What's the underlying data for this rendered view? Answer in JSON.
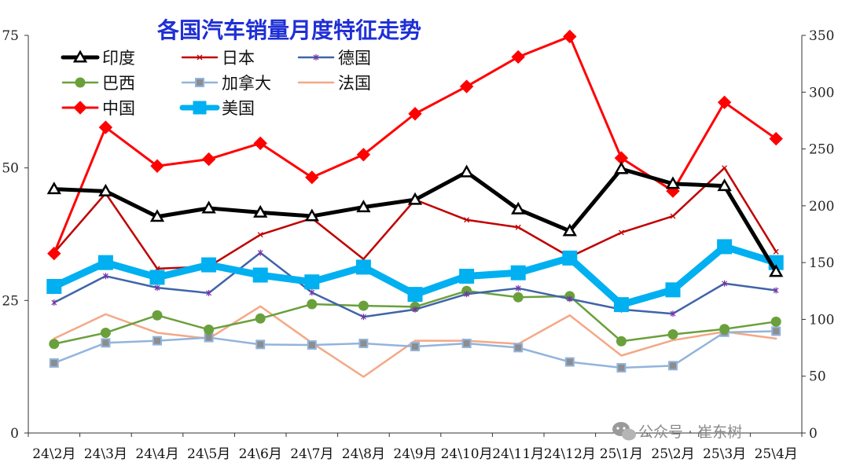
{
  "chart_data": {
    "type": "line",
    "title": "各国汽车销量月度特征走势",
    "categories": [
      "24\\2月",
      "24\\3月",
      "24\\4月",
      "24\\5月",
      "24\\6月",
      "24\\7月",
      "24\\8月",
      "24\\9月",
      "24\\10月",
      "24\\11月",
      "24\\12月",
      "25\\1月",
      "25\\2月",
      "25\\3月",
      "25\\4月"
    ],
    "y_left": {
      "range": [
        0,
        75
      ],
      "ticks": [
        "0",
        "25",
        "50",
        "75"
      ],
      "tick_values": [
        0,
        25,
        50,
        75
      ]
    },
    "y_right": {
      "range": [
        0,
        350
      ],
      "ticks": [
        "0",
        "50",
        "100",
        "150",
        "200",
        "250",
        "300",
        "350"
      ],
      "tick_values": [
        0,
        50,
        100,
        150,
        200,
        250,
        300,
        350
      ]
    },
    "grid": false,
    "legend_position": "top-left",
    "series": [
      {
        "name": "印度",
        "axis": "left",
        "color": "#000000",
        "marker": "triangle",
        "width": 5,
        "values": [
          46.0,
          45.6,
          40.8,
          42.4,
          41.6,
          40.9,
          42.6,
          44.0,
          49.2,
          42.2,
          38.1,
          49.8,
          47.0,
          46.6,
          30.4
        ]
      },
      {
        "name": "日本",
        "axis": "left",
        "color": "#c00000",
        "marker": "x",
        "width": 2.5,
        "values": [
          34.0,
          45.2,
          31.0,
          31.4,
          37.4,
          40.5,
          32.8,
          44.0,
          40.2,
          38.8,
          33.2,
          37.8,
          40.9,
          50.0,
          34.2
        ]
      },
      {
        "name": "德国",
        "axis": "left",
        "color": "#4064a8",
        "marker": "star",
        "width": 2.5,
        "values": [
          24.6,
          29.6,
          27.4,
          26.4,
          34.0,
          26.5,
          21.9,
          23.3,
          26.2,
          27.3,
          25.3,
          23.3,
          22.5,
          28.2,
          26.9
        ]
      },
      {
        "name": "巴西",
        "axis": "left",
        "color": "#6aa03c",
        "marker": "circle",
        "width": 2.5,
        "values": [
          16.8,
          18.9,
          22.2,
          19.5,
          21.6,
          24.3,
          24.0,
          23.8,
          26.8,
          25.6,
          25.8,
          17.3,
          18.6,
          19.6,
          21.0
        ]
      },
      {
        "name": "加拿大",
        "axis": "left",
        "color": "#92b4dc",
        "marker": "square",
        "width": 2.5,
        "values": [
          13.2,
          17.0,
          17.4,
          18.0,
          16.7,
          16.6,
          16.9,
          16.3,
          16.9,
          16.1,
          13.4,
          12.3,
          12.7,
          19.0,
          19.2
        ]
      },
      {
        "name": "法国",
        "axis": "left",
        "color": "#f4a886",
        "marker": "none",
        "width": 2.5,
        "values": [
          17.8,
          22.4,
          18.9,
          17.8,
          23.9,
          17.0,
          10.6,
          17.4,
          17.4,
          16.8,
          22.2,
          14.6,
          17.5,
          19.1,
          17.8
        ]
      },
      {
        "name": "中国",
        "axis": "right",
        "color": "#ff0000",
        "marker": "diamond",
        "width": 3,
        "values": [
          158,
          269,
          235,
          241,
          255,
          225,
          245,
          281,
          305,
          331,
          349,
          242,
          213,
          291,
          259
        ]
      },
      {
        "name": "美国",
        "axis": "right",
        "color": "#00b0f0",
        "marker": "square-filled",
        "width": 9,
        "values": [
          129,
          150,
          137,
          148,
          139,
          133,
          146,
          122,
          138,
          141,
          154,
          113,
          126,
          164,
          150
        ]
      }
    ]
  },
  "watermark": {
    "icon": "wechat-icon",
    "text": "公众号 · 崔东树"
  }
}
